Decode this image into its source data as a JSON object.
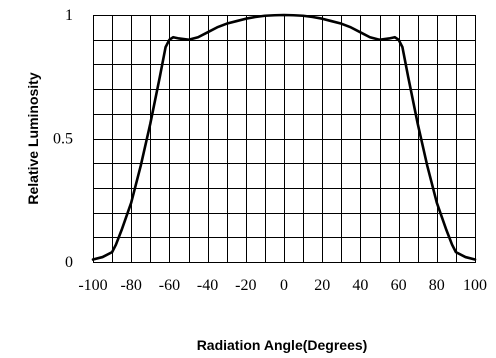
{
  "chart_data": {
    "type": "line",
    "title": "",
    "xlabel": "Radiation Angle(Degrees)",
    "ylabel": "Relative Luminosity",
    "xlim": [
      -100,
      100
    ],
    "ylim": [
      0,
      1
    ],
    "x_ticks": [
      "-100",
      "-80",
      "-60",
      "-40",
      "-20",
      "0",
      "20",
      "40",
      "60",
      "80",
      "100"
    ],
    "y_ticks": [
      "0",
      "0.5",
      "1"
    ],
    "grid": true,
    "grid_x_step": 10,
    "grid_y_step": 0.1,
    "legend": "none",
    "series": [
      {
        "color": "#000000",
        "x": [
          -100,
          -95,
          -90,
          -88,
          -85,
          -80,
          -75,
          -70,
          -65,
          -62,
          -60,
          -58,
          -55,
          -50,
          -45,
          -40,
          -35,
          -30,
          -25,
          -20,
          -15,
          -10,
          -5,
          0,
          5,
          10,
          15,
          20,
          25,
          30,
          35,
          40,
          45,
          50,
          55,
          58,
          60,
          62,
          65,
          70,
          75,
          80,
          85,
          88,
          90,
          95,
          100
        ],
        "y": [
          0.01,
          0.02,
          0.04,
          0.07,
          0.13,
          0.24,
          0.39,
          0.56,
          0.75,
          0.87,
          0.9,
          0.91,
          0.905,
          0.9,
          0.91,
          0.93,
          0.95,
          0.965,
          0.975,
          0.985,
          0.992,
          0.997,
          0.999,
          1.0,
          0.999,
          0.997,
          0.992,
          0.985,
          0.975,
          0.965,
          0.95,
          0.93,
          0.91,
          0.9,
          0.905,
          0.91,
          0.9,
          0.87,
          0.75,
          0.56,
          0.39,
          0.24,
          0.13,
          0.07,
          0.04,
          0.02,
          0.01
        ]
      }
    ]
  }
}
